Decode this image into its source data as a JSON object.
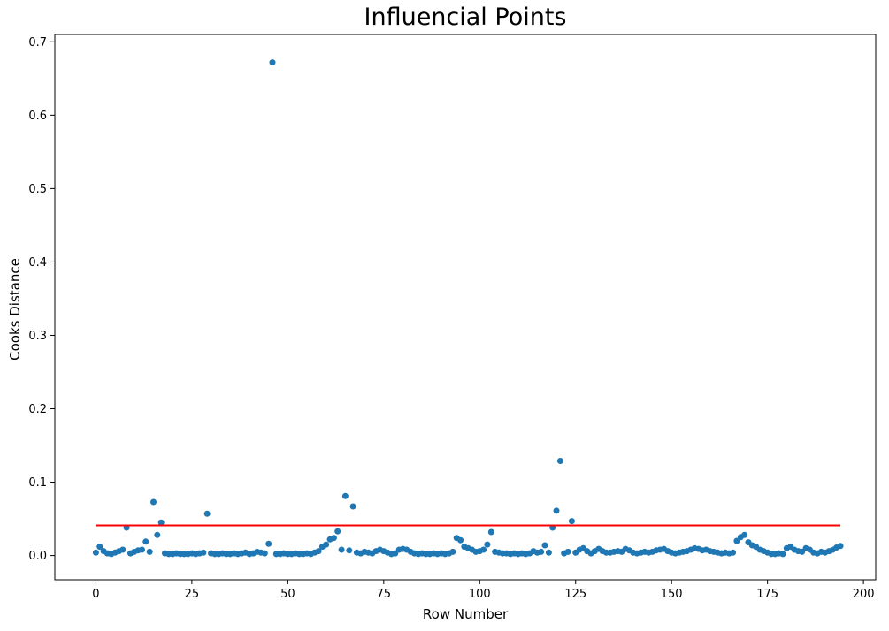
{
  "chart_data": {
    "type": "scatter",
    "title": "Influencial Points",
    "xlabel": "Row Number",
    "ylabel": "Cooks Distance",
    "xlim": [
      -10.7,
      203.2
    ],
    "ylim": [
      -0.033,
      0.71
    ],
    "xticks": [
      0,
      25,
      50,
      75,
      100,
      125,
      150,
      175,
      200
    ],
    "xtick_labels": [
      "0",
      "25",
      "50",
      "75",
      "100",
      "125",
      "150",
      "175",
      "200"
    ],
    "yticks": [
      0.0,
      0.1,
      0.2,
      0.3,
      0.4,
      0.5,
      0.6,
      0.7
    ],
    "ytick_labels": [
      "0.0",
      "0.1",
      "0.2",
      "0.3",
      "0.4",
      "0.5",
      "0.6",
      "0.7"
    ],
    "grid": false,
    "legend": "none",
    "marker_color": "#1f77b4",
    "marker_diameter_px": 7,
    "axis_color": "#000000",
    "threshold_line": {
      "y": 0.041,
      "x_start": 0,
      "x_end": 194,
      "color": "#ff0000"
    },
    "points_above_threshold": [
      {
        "row": 15,
        "cooks_distance": 0.073
      },
      {
        "row": 17,
        "cooks_distance": 0.045
      },
      {
        "row": 29,
        "cooks_distance": 0.057
      },
      {
        "row": 46,
        "cooks_distance": 0.672
      },
      {
        "row": 65,
        "cooks_distance": 0.081
      },
      {
        "row": 67,
        "cooks_distance": 0.067
      },
      {
        "row": 120,
        "cooks_distance": 0.061
      },
      {
        "row": 121,
        "cooks_distance": 0.129
      },
      {
        "row": 124,
        "cooks_distance": 0.047
      }
    ],
    "series": [
      {
        "name": "Cooks distance per row",
        "x": [
          0,
          1,
          2,
          3,
          4,
          5,
          6,
          7,
          8,
          9,
          10,
          11,
          12,
          13,
          14,
          15,
          16,
          17,
          18,
          19,
          20,
          21,
          22,
          23,
          24,
          25,
          26,
          27,
          28,
          29,
          30,
          31,
          32,
          33,
          34,
          35,
          36,
          37,
          38,
          39,
          40,
          41,
          42,
          43,
          44,
          45,
          46,
          47,
          48,
          49,
          50,
          51,
          52,
          53,
          54,
          55,
          56,
          57,
          58,
          59,
          60,
          61,
          62,
          63,
          64,
          65,
          66,
          67,
          68,
          69,
          70,
          71,
          72,
          73,
          74,
          75,
          76,
          77,
          78,
          79,
          80,
          81,
          82,
          83,
          84,
          85,
          86,
          87,
          88,
          89,
          90,
          91,
          92,
          93,
          94,
          95,
          96,
          97,
          98,
          99,
          100,
          101,
          102,
          103,
          104,
          105,
          106,
          107,
          108,
          109,
          110,
          111,
          112,
          113,
          114,
          115,
          116,
          117,
          118,
          119,
          120,
          121,
          122,
          123,
          124,
          125,
          126,
          127,
          128,
          129,
          130,
          131,
          132,
          133,
          134,
          135,
          136,
          137,
          138,
          139,
          140,
          141,
          142,
          143,
          144,
          145,
          146,
          147,
          148,
          149,
          150,
          151,
          152,
          153,
          154,
          155,
          156,
          157,
          158,
          159,
          160,
          161,
          162,
          163,
          164,
          165,
          166,
          167,
          168,
          169,
          170,
          171,
          172,
          173,
          174,
          175,
          176,
          177,
          178,
          179,
          180,
          181,
          182,
          183,
          184,
          185,
          186,
          187,
          188,
          189,
          190,
          191,
          192,
          193,
          194
        ],
        "y": [
          0.004,
          0.012,
          0.006,
          0.003,
          0.002,
          0.004,
          0.006,
          0.008,
          0.038,
          0.003,
          0.005,
          0.007,
          0.008,
          0.019,
          0.005,
          0.073,
          0.028,
          0.045,
          0.003,
          0.002,
          0.002,
          0.003,
          0.002,
          0.002,
          0.002,
          0.003,
          0.002,
          0.003,
          0.004,
          0.057,
          0.003,
          0.002,
          0.002,
          0.003,
          0.002,
          0.002,
          0.003,
          0.002,
          0.003,
          0.004,
          0.002,
          0.003,
          0.005,
          0.004,
          0.003,
          0.016,
          0.672,
          0.002,
          0.002,
          0.003,
          0.002,
          0.002,
          0.003,
          0.002,
          0.002,
          0.003,
          0.002,
          0.004,
          0.006,
          0.012,
          0.015,
          0.022,
          0.024,
          0.033,
          0.008,
          0.081,
          0.007,
          0.067,
          0.004,
          0.003,
          0.005,
          0.004,
          0.003,
          0.006,
          0.008,
          0.006,
          0.004,
          0.002,
          0.003,
          0.008,
          0.009,
          0.008,
          0.005,
          0.003,
          0.002,
          0.003,
          0.002,
          0.002,
          0.003,
          0.002,
          0.003,
          0.002,
          0.003,
          0.005,
          0.024,
          0.021,
          0.012,
          0.01,
          0.008,
          0.005,
          0.006,
          0.008,
          0.015,
          0.032,
          0.005,
          0.004,
          0.003,
          0.003,
          0.002,
          0.003,
          0.002,
          0.003,
          0.002,
          0.003,
          0.006,
          0.004,
          0.005,
          0.014,
          0.004,
          0.038,
          0.061,
          0.129,
          0.003,
          0.005,
          0.047,
          0.004,
          0.008,
          0.01,
          0.006,
          0.003,
          0.006,
          0.009,
          0.006,
          0.004,
          0.004,
          0.005,
          0.006,
          0.005,
          0.009,
          0.007,
          0.004,
          0.003,
          0.004,
          0.005,
          0.004,
          0.005,
          0.007,
          0.008,
          0.009,
          0.006,
          0.004,
          0.003,
          0.004,
          0.005,
          0.006,
          0.008,
          0.01,
          0.009,
          0.007,
          0.008,
          0.006,
          0.005,
          0.004,
          0.003,
          0.004,
          0.003,
          0.004,
          0.02,
          0.025,
          0.028,
          0.018,
          0.014,
          0.012,
          0.008,
          0.006,
          0.004,
          0.002,
          0.002,
          0.003,
          0.002,
          0.01,
          0.012,
          0.008,
          0.006,
          0.005,
          0.01,
          0.008,
          0.004,
          0.003,
          0.005,
          0.004,
          0.006,
          0.008,
          0.011,
          0.013
        ]
      }
    ]
  }
}
